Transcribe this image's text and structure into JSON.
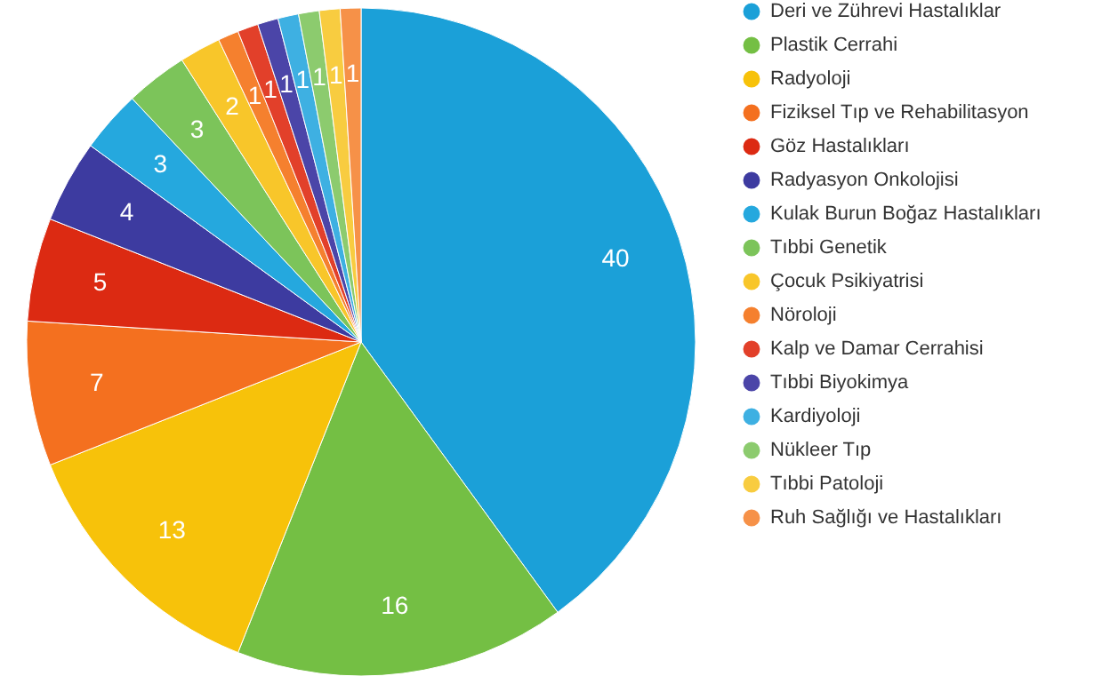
{
  "chart_data": {
    "type": "pie",
    "categories": [
      "Deri ve Zührevi Hastalıklar",
      "Plastik Cerrahi",
      "Radyoloji",
      "Fiziksel Tıp ve Rehabilitasyon",
      "Göz Hastalıkları",
      "Radyasyon Onkolojisi",
      "Kulak Burun Boğaz Hastalıkları",
      "Tıbbi Genetik",
      "Çocuk Psikiyatrisi",
      "Nöroloji",
      "Kalp ve Damar Cerrahisi",
      "Tıbbi Biyokimya",
      "Kardiyoloji",
      "Nükleer Tıp",
      "Tıbbi Patoloji",
      "Ruh Sağlığı ve Hastalıkları"
    ],
    "values": [
      40,
      16,
      13,
      7,
      5,
      4,
      3,
      3,
      2,
      1,
      1,
      1,
      1,
      1,
      1,
      1
    ],
    "colors": [
      "#1ba0d8",
      "#74bf44",
      "#f7c20a",
      "#f4701f",
      "#dc2a12",
      "#3d3ba0",
      "#25a8de",
      "#7cc45a",
      "#f8c62a",
      "#f5802e",
      "#e2402a",
      "#4b45a8",
      "#3eb0e2",
      "#8ccb6e",
      "#f8cc40",
      "#f69148"
    ],
    "data_labels": true,
    "legend": "right"
  }
}
